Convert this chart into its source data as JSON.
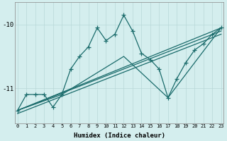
{
  "xlabel": "Humidex (Indice chaleur)",
  "background_color": "#d4eeee",
  "line_color": "#1a6b6b",
  "grid_color": "#b8d8d8",
  "series": [
    {
      "x": [
        0,
        1,
        2,
        3,
        4,
        5,
        6,
        7,
        8,
        9,
        10,
        11,
        12,
        13,
        14,
        15,
        16,
        17,
        18,
        19,
        20,
        21,
        22,
        23
      ],
      "y": [
        -11.35,
        -11.1,
        -11.1,
        -11.1,
        -11.3,
        -11.1,
        -10.7,
        -10.5,
        -10.35,
        -10.05,
        -10.25,
        -10.15,
        -9.85,
        -10.1,
        -10.45,
        -10.55,
        -10.7,
        -11.15,
        -10.85,
        -10.6,
        -10.4,
        -10.3,
        -10.15,
        -10.05
      ],
      "marker": true
    },
    {
      "x": [
        0,
        5,
        12,
        17,
        23
      ],
      "y": [
        -11.35,
        -11.1,
        -10.5,
        -11.15,
        -10.05
      ],
      "marker": false
    },
    {
      "x": [
        0,
        23
      ],
      "y": [
        -11.35,
        -10.05
      ],
      "marker": false
    },
    {
      "x": [
        0,
        23
      ],
      "y": [
        -11.35,
        -10.1
      ],
      "marker": false
    },
    {
      "x": [
        0,
        23
      ],
      "y": [
        -11.4,
        -10.15
      ],
      "marker": false
    }
  ],
  "ylim": [
    -11.55,
    -9.65
  ],
  "xlim": [
    -0.3,
    23.3
  ],
  "yticks": [
    -11,
    -10
  ],
  "xticks": [
    0,
    1,
    2,
    3,
    4,
    5,
    6,
    7,
    8,
    9,
    10,
    11,
    12,
    13,
    14,
    15,
    16,
    17,
    18,
    19,
    20,
    21,
    22,
    23
  ],
  "markersize": 4,
  "linewidth": 0.9,
  "figsize": [
    3.2,
    2.0
  ],
  "dpi": 100
}
